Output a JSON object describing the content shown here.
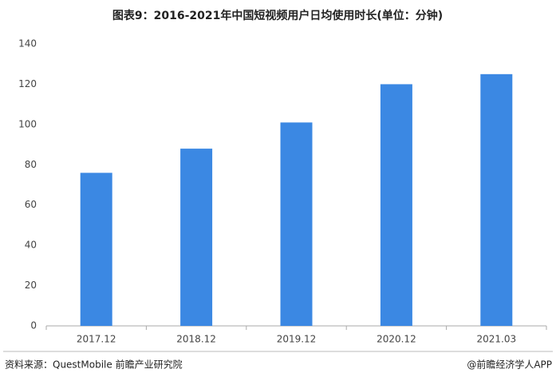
{
  "chart_data": {
    "type": "bar",
    "title": "图表9：2016-2021年中国短视频用户日均使用时长(单位：分钟)",
    "categories": [
      "2017.12",
      "2018.12",
      "2019.12",
      "2020.12",
      "2021.03"
    ],
    "values": [
      76,
      88,
      101,
      120,
      125
    ],
    "color": "#3b88e3",
    "ylim": [
      0,
      140
    ],
    "yticks": [
      0,
      20,
      40,
      60,
      80,
      100,
      120,
      140
    ],
    "grid": false,
    "source": "资料来源：QuestMobile 前瞻产业研究院",
    "credit": "@前瞻经济学人APP"
  }
}
